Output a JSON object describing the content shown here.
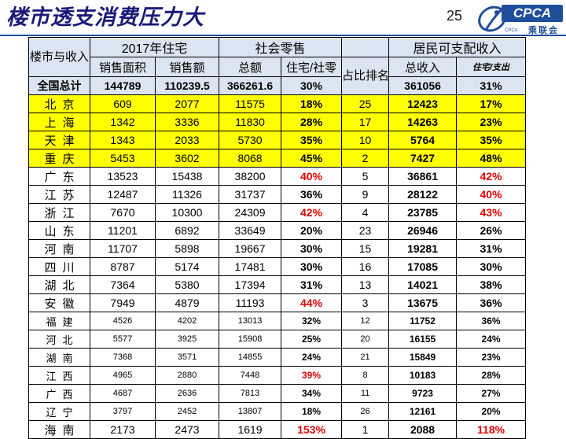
{
  "header": {
    "title": "楼市透支消费压力大",
    "page_number": "25",
    "logo_text": "CPCA",
    "logo_subtext": "乘联会",
    "logo_tiny": "CPCA"
  },
  "table": {
    "row_header": "楼市与收入",
    "group_housing": "2017年住宅",
    "group_retail": "社会零售",
    "group_income": "居民可支配收入",
    "rank_header": "占比排名",
    "sub_area": "销售面积",
    "sub_sales": "销售额",
    "sub_retail_total": "总额",
    "sub_ratio": "住宅/社零",
    "sub_income_total": "总收入",
    "sub_house_expense": "住宅/支出",
    "total": {
      "region": "全国总计",
      "area": "144789",
      "sales": "110239.5",
      "retail": "366261.6",
      "ratio": "30%",
      "income": "361056",
      "pct": "31%"
    },
    "rows": [
      {
        "region": "北京",
        "area": "609",
        "sales": "2077",
        "retail": "11575",
        "ratio": "18%",
        "rank": "25",
        "income": "12423",
        "pct": "17%"
      },
      {
        "region": "上海",
        "area": "1342",
        "sales": "3336",
        "retail": "11830",
        "ratio": "28%",
        "rank": "17",
        "income": "14263",
        "pct": "23%"
      },
      {
        "region": "天津",
        "area": "1343",
        "sales": "2033",
        "retail": "5730",
        "ratio": "35%",
        "rank": "10",
        "income": "5764",
        "pct": "35%"
      },
      {
        "region": "重庆",
        "area": "5453",
        "sales": "3602",
        "retail": "8068",
        "ratio": "45%",
        "rank": "2",
        "income": "7427",
        "pct": "48%"
      },
      {
        "region": "广东",
        "area": "13523",
        "sales": "15438",
        "retail": "38200",
        "ratio": "40%",
        "rank": "5",
        "income": "36861",
        "pct": "42%"
      },
      {
        "region": "江苏",
        "area": "12487",
        "sales": "11326",
        "retail": "31737",
        "ratio": "36%",
        "rank": "9",
        "income": "28122",
        "pct": "40%"
      },
      {
        "region": "浙江",
        "area": "7670",
        "sales": "10300",
        "retail": "24309",
        "ratio": "42%",
        "rank": "4",
        "income": "23785",
        "pct": "43%"
      },
      {
        "region": "山东",
        "area": "11201",
        "sales": "6892",
        "retail": "33649",
        "ratio": "20%",
        "rank": "23",
        "income": "26946",
        "pct": "26%"
      },
      {
        "region": "河南",
        "area": "11707",
        "sales": "5898",
        "retail": "19667",
        "ratio": "30%",
        "rank": "15",
        "income": "19281",
        "pct": "31%"
      },
      {
        "region": "四川",
        "area": "8787",
        "sales": "5174",
        "retail": "17481",
        "ratio": "30%",
        "rank": "16",
        "income": "17085",
        "pct": "30%"
      },
      {
        "region": "湖北",
        "area": "7364",
        "sales": "5380",
        "retail": "17394",
        "ratio": "31%",
        "rank": "13",
        "income": "14021",
        "pct": "38%"
      },
      {
        "region": "安徽",
        "area": "7949",
        "sales": "4879",
        "retail": "11193",
        "ratio": "44%",
        "rank": "3",
        "income": "13675",
        "pct": "36%"
      },
      {
        "region": "福建",
        "area": "4526",
        "sales": "4202",
        "retail": "13013",
        "ratio": "32%",
        "rank": "12",
        "income": "11752",
        "pct": "36%"
      },
      {
        "region": "河北",
        "area": "5577",
        "sales": "3925",
        "retail": "15908",
        "ratio": "25%",
        "rank": "20",
        "income": "16155",
        "pct": "24%"
      },
      {
        "region": "湖南",
        "area": "7368",
        "sales": "3571",
        "retail": "14855",
        "ratio": "24%",
        "rank": "21",
        "income": "15849",
        "pct": "23%"
      },
      {
        "region": "江西",
        "area": "4965",
        "sales": "2880",
        "retail": "7448",
        "ratio": "39%",
        "rank": "8",
        "income": "10183",
        "pct": "28%"
      },
      {
        "region": "广西",
        "area": "4687",
        "sales": "2636",
        "retail": "7813",
        "ratio": "34%",
        "rank": "11",
        "income": "9723",
        "pct": "27%"
      },
      {
        "region": "辽宁",
        "area": "3797",
        "sales": "2452",
        "retail": "13807",
        "ratio": "18%",
        "rank": "26",
        "income": "12161",
        "pct": "20%"
      },
      {
        "region": "海南",
        "area": "2173",
        "sales": "2473",
        "retail": "1619",
        "ratio": "153%",
        "rank": "1",
        "income": "2088",
        "pct": "118%"
      }
    ]
  },
  "colors": {
    "highlight": "#ffff00",
    "header_bg": "#dbe5f1",
    "emphasis_red": "#e00000",
    "title": "#1a1a7a",
    "logo_blue": "#1f4e9c"
  }
}
